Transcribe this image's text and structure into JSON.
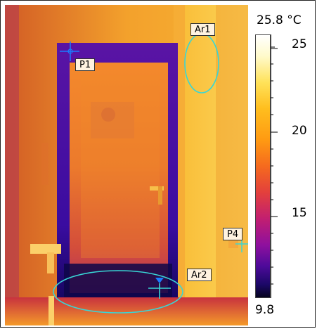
{
  "scale": {
    "max_label": "25.8 °C",
    "min_label": "9.8",
    "ticks": [
      "25",
      "20",
      "15"
    ]
  },
  "markers": {
    "ar1": "Ar1",
    "p1": "P1",
    "p4": "P4",
    "ar2": "Ar2"
  },
  "colors": {
    "marker_line": "#38d6d6",
    "marker_cross": "#1a7cff",
    "wall": "#f39a2a",
    "door_frame": "#3a0ca0"
  }
}
